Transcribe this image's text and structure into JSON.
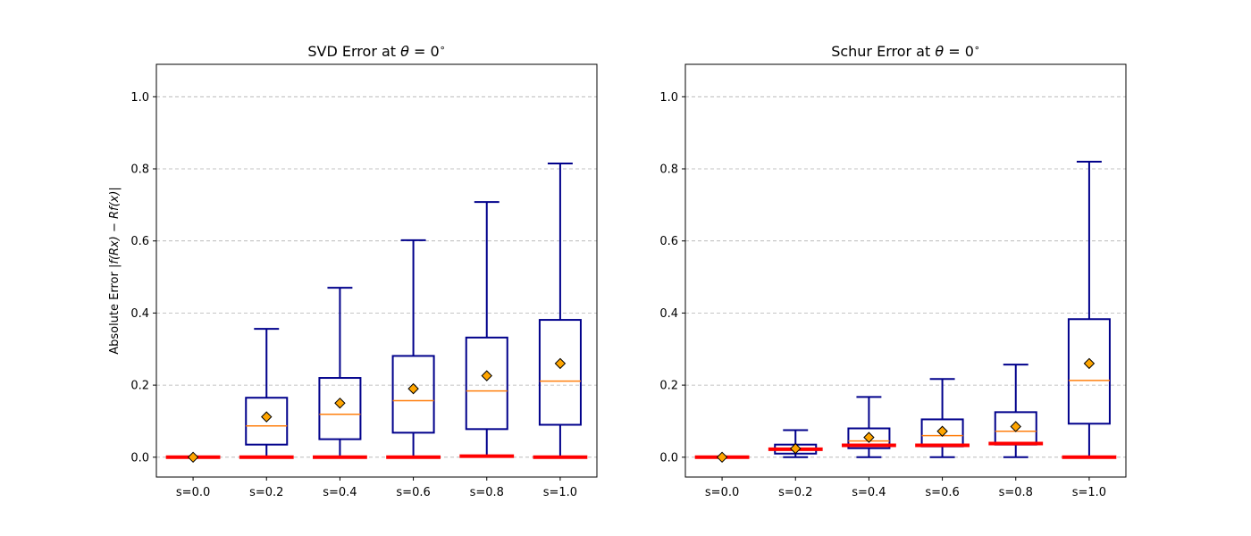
{
  "colors": {
    "box": "#00008b",
    "median": "#ff7f0e",
    "mean_fill": "#ffa500",
    "mean_edge": "#000000",
    "min_marker": "#ff0000",
    "grid": "#b0b0b0"
  },
  "chart_data": [
    {
      "type": "box",
      "title": "SVD Error at θ = 0°",
      "title_parts": {
        "prefix": "SVD Error at ",
        "symbol": "θ",
        "suffix": " = 0",
        "degree": "∘"
      },
      "ylabel": "Absolute Error |f(Rx) − Rf(x)|",
      "ylabel_parts": {
        "prefix": "Absolute Error ",
        "math": "|f(Rx) − Rf(x)|"
      },
      "ylim": [
        -0.055,
        1.09
      ],
      "yticks": [
        "0.0",
        "0.2",
        "0.4",
        "0.6",
        "0.8",
        "1.0"
      ],
      "grid": "horizontal dashed",
      "categories": [
        "s=0.0",
        "s=0.2",
        "s=0.4",
        "s=0.6",
        "s=0.8",
        "s=1.0"
      ],
      "boxes": [
        {
          "whisker_low": 0.0,
          "q1": 0.0,
          "median": 0.0,
          "q3": 0.0,
          "whisker_high": 0.0,
          "mean": 0.0,
          "min_line": 0.0
        },
        {
          "whisker_low": 0.0,
          "q1": 0.035,
          "median": 0.087,
          "q3": 0.165,
          "whisker_high": 0.356,
          "mean": 0.112,
          "min_line": 0.0
        },
        {
          "whisker_low": 0.0,
          "q1": 0.05,
          "median": 0.119,
          "q3": 0.22,
          "whisker_high": 0.47,
          "mean": 0.15,
          "min_line": 0.0
        },
        {
          "whisker_low": 0.0,
          "q1": 0.068,
          "median": 0.157,
          "q3": 0.281,
          "whisker_high": 0.602,
          "mean": 0.19,
          "min_line": 0.0
        },
        {
          "whisker_low": 0.003,
          "q1": 0.078,
          "median": 0.184,
          "q3": 0.332,
          "whisker_high": 0.708,
          "mean": 0.226,
          "min_line": 0.003
        },
        {
          "whisker_low": 0.0,
          "q1": 0.09,
          "median": 0.211,
          "q3": 0.381,
          "whisker_high": 0.815,
          "mean": 0.26,
          "min_line": 0.0
        }
      ]
    },
    {
      "type": "box",
      "title": "Schur Error at θ = 0°",
      "title_parts": {
        "prefix": "Schur Error at ",
        "symbol": "θ",
        "suffix": " = 0",
        "degree": "∘"
      },
      "ylabel": "",
      "ylim": [
        -0.055,
        1.09
      ],
      "yticks": [
        "0.0",
        "0.2",
        "0.4",
        "0.6",
        "0.8",
        "1.0"
      ],
      "grid": "horizontal dashed",
      "categories": [
        "s=0.0",
        "s=0.2",
        "s=0.4",
        "s=0.6",
        "s=0.8",
        "s=1.0"
      ],
      "boxes": [
        {
          "whisker_low": 0.0,
          "q1": 0.0,
          "median": 0.0,
          "q3": 0.0,
          "whisker_high": 0.0,
          "mean": 0.0,
          "min_line": 0.0
        },
        {
          "whisker_low": 0.0,
          "q1": 0.01,
          "median": 0.022,
          "q3": 0.035,
          "whisker_high": 0.075,
          "mean": 0.024,
          "min_line": 0.022
        },
        {
          "whisker_low": 0.0,
          "q1": 0.025,
          "median": 0.045,
          "q3": 0.08,
          "whisker_high": 0.167,
          "mean": 0.055,
          "min_line": 0.033
        },
        {
          "whisker_low": 0.0,
          "q1": 0.03,
          "median": 0.06,
          "q3": 0.105,
          "whisker_high": 0.217,
          "mean": 0.072,
          "min_line": 0.033
        },
        {
          "whisker_low": 0.0,
          "q1": 0.035,
          "median": 0.072,
          "q3": 0.125,
          "whisker_high": 0.257,
          "mean": 0.085,
          "min_line": 0.038
        },
        {
          "whisker_low": 0.0,
          "q1": 0.093,
          "median": 0.213,
          "q3": 0.383,
          "whisker_high": 0.82,
          "mean": 0.26,
          "min_line": 0.0
        }
      ]
    }
  ]
}
